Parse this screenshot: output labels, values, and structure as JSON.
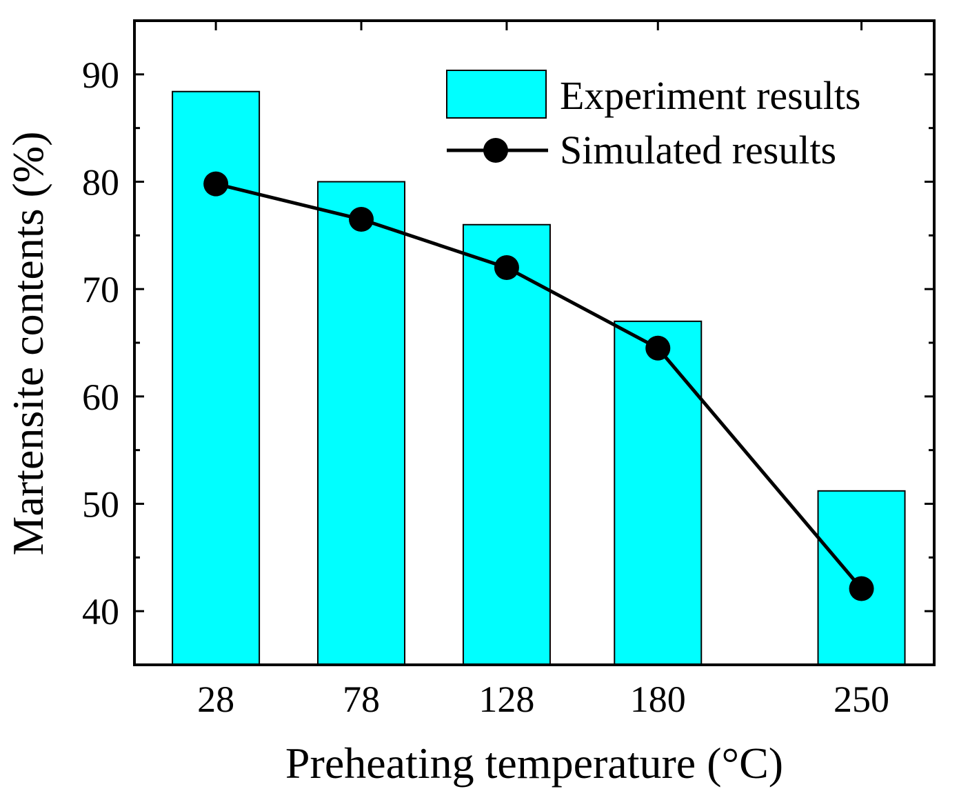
{
  "chart_data": {
    "type": "bar+line",
    "title": "",
    "xlabel": "Preheating temperature (°C)",
    "ylabel": "Martensite contents (%)",
    "x": [
      28,
      78,
      128,
      180,
      250
    ],
    "categories": [
      "28",
      "78",
      "128",
      "180",
      "250"
    ],
    "xlim": [
      0,
      275
    ],
    "ylim": [
      35,
      95
    ],
    "yticks": [
      40,
      50,
      60,
      70,
      80,
      90
    ],
    "grid": false,
    "legend_position": "top-right",
    "series": [
      {
        "name": "Experiment results",
        "type": "bar",
        "color": "#00FFFF",
        "values": [
          88.4,
          80.0,
          76.0,
          67.0,
          51.2
        ]
      },
      {
        "name": "Simulated results",
        "type": "line",
        "color": "#000000",
        "values": [
          79.8,
          76.5,
          72.0,
          64.5,
          42.1
        ]
      }
    ]
  }
}
